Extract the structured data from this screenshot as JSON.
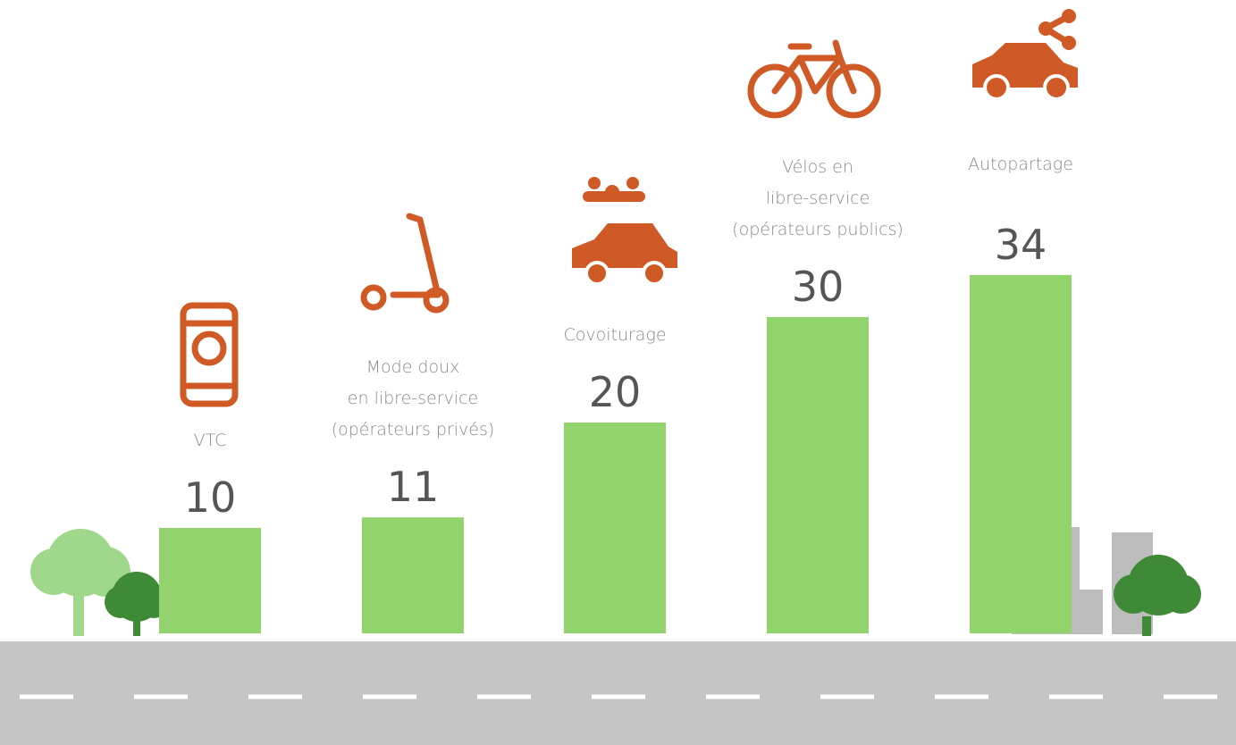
{
  "chart_data": {
    "type": "bar",
    "categories": [
      [
        "VTC"
      ],
      [
        "Mode doux",
        "en libre-service",
        "(opérateurs privés)"
      ],
      [
        "Covoiturage"
      ],
      [
        "Vélos en",
        "libre-service",
        "(opérateurs publics)"
      ],
      [
        "Autopartage"
      ]
    ],
    "values": [
      10,
      11,
      20,
      30,
      34
    ],
    "color": "#92d36e"
  }
}
